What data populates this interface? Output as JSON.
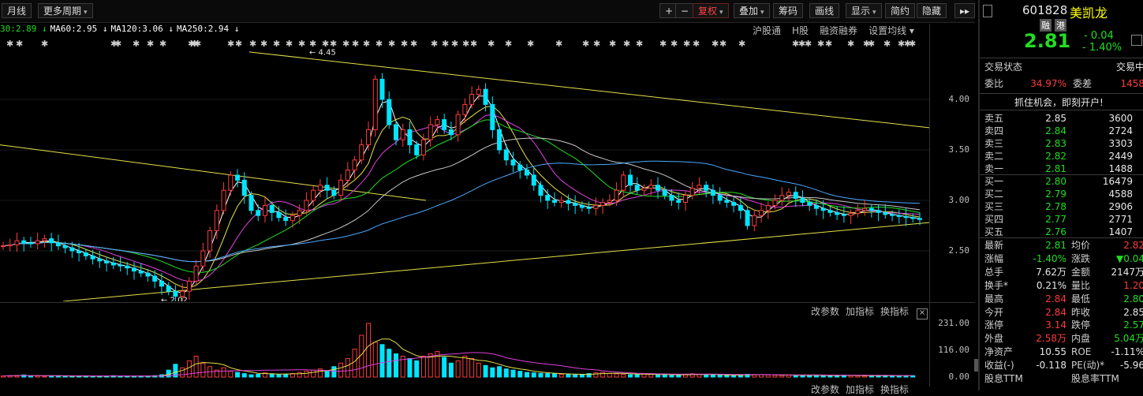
{
  "toolbar": {
    "left": [
      {
        "label": "月线",
        "dropdown": false
      },
      {
        "label": "更多周期",
        "dropdown": true
      }
    ],
    "right": [
      {
        "label": "+",
        "dropdown": false,
        "active": false
      },
      {
        "label": "−",
        "dropdown": false,
        "active": false
      },
      {
        "label": "复权",
        "dropdown": true,
        "active": true
      },
      {
        "label": "叠加",
        "dropdown": true,
        "active": false
      },
      {
        "label": "筹码",
        "dropdown": false,
        "active": false
      },
      {
        "label": "画线",
        "dropdown": false,
        "active": false
      },
      {
        "label": "显示",
        "dropdown": true,
        "active": false
      },
      {
        "label": "简约",
        "dropdown": false,
        "active": false
      },
      {
        "label": "隐藏",
        "dropdown": false,
        "active": false
      },
      {
        "label": "▸▸",
        "dropdown": false,
        "active": false
      }
    ]
  },
  "ma_row": [
    {
      "text": "30:2.89 ↓",
      "color": "#22dd22"
    },
    {
      "text": "MA60:2.95 ↓",
      "color": "#ffffff"
    },
    {
      "text": "MA120:3.06 ↓",
      "color": "#ffffff"
    },
    {
      "text": "MA250:2.94 ↓",
      "color": "#ffffff"
    }
  ],
  "top_links": [
    "沪股通",
    "H股",
    "融资融券",
    "设置均线 ▾"
  ],
  "volume_links": [
    "改参数",
    "加指标",
    "换指标"
  ],
  "volume_links_bottom": [
    "改参数",
    "加指标",
    "换指标"
  ],
  "price_axis": [
    "4.00",
    "3.50",
    "3.00",
    "2.50"
  ],
  "volume_axis": [
    "231.00",
    "116.00",
    "0.00"
  ],
  "annotations": {
    "high": "← 4.45",
    "low": "← 2.02"
  },
  "colors": {
    "up": "#ff3b3b",
    "down": "#00e5ff",
    "trend": "#e6e04a"
  },
  "stock": {
    "code": "601828",
    "name": "美凯龙",
    "badges": [
      "融",
      "港"
    ],
    "price": "2.81",
    "change": "- 0.04",
    "change_pct": "- 1.40%"
  },
  "trade_status": {
    "label": "交易状态",
    "value": "交易中"
  },
  "weibi": {
    "label": "委比",
    "value": "34.97%",
    "diff_label": "委差",
    "diff_value": "1458"
  },
  "promo": "抓住机会，即刻开户!",
  "sells": [
    {
      "label": "卖五",
      "price": "2.85",
      "vol": "3600"
    },
    {
      "label": "卖四",
      "price": "2.84",
      "vol": "2724"
    },
    {
      "label": "卖三",
      "price": "2.83",
      "vol": "3303"
    },
    {
      "label": "卖二",
      "price": "2.82",
      "vol": "2449"
    },
    {
      "label": "卖一",
      "price": "2.81",
      "vol": "1488"
    }
  ],
  "buys": [
    {
      "label": "买一",
      "price": "2.80",
      "vol": "16479"
    },
    {
      "label": "买二",
      "price": "2.79",
      "vol": "4588"
    },
    {
      "label": "买三",
      "price": "2.78",
      "vol": "2906"
    },
    {
      "label": "买四",
      "price": "2.77",
      "vol": "2771"
    },
    {
      "label": "买五",
      "price": "2.76",
      "vol": "1407"
    }
  ],
  "stats": [
    {
      "l1": "最新",
      "v1": "2.81",
      "c1": "green",
      "l2": "均价",
      "v2": "2.82",
      "c2": "red"
    },
    {
      "l1": "涨幅",
      "v1": "-1.40%",
      "c1": "green",
      "l2": "涨跌",
      "v2": "▼0.04",
      "c2": "green"
    },
    {
      "l1": "总手",
      "v1": "7.62万",
      "c1": "white",
      "l2": "金额",
      "v2": "2147万",
      "c2": "white"
    },
    {
      "l1": "换手*",
      "v1": "0.21%",
      "c1": "white",
      "l2": "量比",
      "v2": "1.20",
      "c2": "red"
    },
    {
      "l1": "最高",
      "v1": "2.84",
      "c1": "red",
      "l2": "最低",
      "v2": "2.80",
      "c2": "green"
    },
    {
      "l1": "今开",
      "v1": "2.84",
      "c1": "red",
      "l2": "昨收",
      "v2": "2.85",
      "c2": "white"
    },
    {
      "l1": "涨停",
      "v1": "3.14",
      "c1": "red",
      "l2": "跌停",
      "v2": "2.57",
      "c2": "green"
    },
    {
      "l1": "外盘",
      "v1": "2.58万",
      "c1": "red",
      "l2": "内盘",
      "v2": "5.04万",
      "c2": "green"
    },
    {
      "l1": "净资产",
      "v1": "10.55",
      "c1": "white",
      "l2": "ROE",
      "v2": "-1.11%",
      "c2": "white"
    },
    {
      "l1": "收益(-)",
      "v1": "-0.118",
      "c1": "white",
      "l2": "PE(动)*",
      "v2": "-5.96",
      "c2": "white"
    },
    {
      "l1": "股息TTM",
      "v1": "",
      "c1": "white",
      "l2": "股息率TTM",
      "v2": "",
      "c2": "white"
    }
  ],
  "chart_data": {
    "type": "candlestick",
    "price_range": [
      2.0,
      4.5
    ],
    "volume_range": [
      0,
      231
    ],
    "closes": [
      2.55,
      2.56,
      2.6,
      2.58,
      2.57,
      2.6,
      2.62,
      2.58,
      2.55,
      2.53,
      2.5,
      2.48,
      2.45,
      2.42,
      2.4,
      2.38,
      2.36,
      2.35,
      2.33,
      2.3,
      2.28,
      2.25,
      2.2,
      2.15,
      2.1,
      2.05,
      2.1,
      2.2,
      2.35,
      2.5,
      2.7,
      2.9,
      3.1,
      3.25,
      3.2,
      3.05,
      2.9,
      2.85,
      2.95,
      2.88,
      2.83,
      2.8,
      2.85,
      2.9,
      3.0,
      3.1,
      3.15,
      3.1,
      3.05,
      3.2,
      3.3,
      3.4,
      3.55,
      3.7,
      4.2,
      4.0,
      3.75,
      3.6,
      3.7,
      3.55,
      3.45,
      3.6,
      3.75,
      3.8,
      3.7,
      3.65,
      3.85,
      3.95,
      4.05,
      4.1,
      3.95,
      3.7,
      3.5,
      3.4,
      3.35,
      3.3,
      3.25,
      3.15,
      3.05,
      3.0,
      2.98,
      3.0,
      2.97,
      2.95,
      2.93,
      2.92,
      2.95,
      2.98,
      3.0,
      3.1,
      3.25,
      3.15,
      3.1,
      3.12,
      3.15,
      3.1,
      3.05,
      3.0,
      2.98,
      3.05,
      3.12,
      3.15,
      3.1,
      3.05,
      3.0,
      2.98,
      2.95,
      2.9,
      2.75,
      2.85,
      2.9,
      2.95,
      3.0,
      3.05,
      3.08,
      3.02,
      2.98,
      2.95,
      2.92,
      2.9,
      2.88,
      2.86,
      2.85,
      2.87,
      2.9,
      2.92,
      2.9,
      2.88,
      2.86,
      2.85,
      2.84,
      2.83,
      2.82,
      2.81
    ],
    "volumes": [
      5,
      6,
      7,
      9,
      6,
      5,
      4,
      5,
      6,
      4,
      3,
      4,
      5,
      4,
      3,
      4,
      6,
      5,
      4,
      3,
      4,
      5,
      6,
      10,
      30,
      55,
      40,
      70,
      90,
      60,
      45,
      30,
      40,
      25,
      20,
      15,
      10,
      12,
      18,
      14,
      10,
      12,
      15,
      20,
      25,
      30,
      35,
      28,
      45,
      60,
      80,
      120,
      180,
      231,
      150,
      140,
      120,
      100,
      90,
      80,
      70,
      90,
      100,
      110,
      85,
      60,
      70,
      90,
      80,
      60,
      50,
      40,
      45,
      35,
      30,
      25,
      20,
      18,
      16,
      15,
      14,
      12,
      11,
      10,
      12,
      15,
      18,
      20,
      16,
      14,
      12,
      10,
      12,
      14,
      12,
      10,
      9,
      8,
      10,
      12,
      14,
      11,
      10,
      9,
      8,
      7,
      9,
      10,
      12,
      11,
      10,
      9,
      8,
      7,
      9,
      8,
      7,
      6,
      8,
      7,
      6,
      7,
      8,
      7,
      6,
      5,
      5,
      6,
      7,
      6,
      5,
      5,
      6
    ]
  }
}
